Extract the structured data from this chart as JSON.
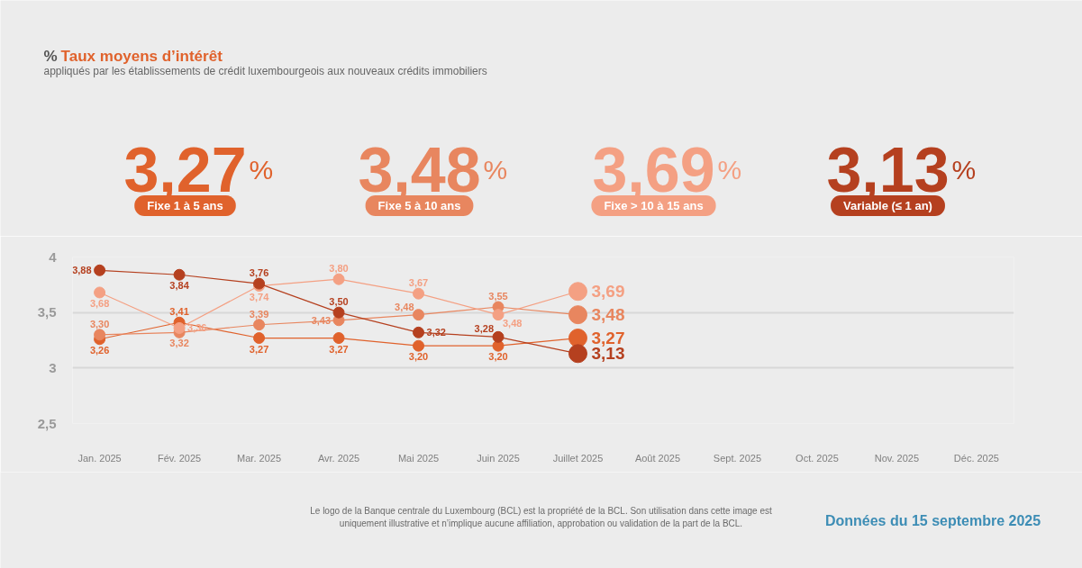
{
  "chart_data": {
    "type": "line",
    "title": "Taux moyens d’intérêt",
    "subtitle": "appliqués par les établissements de crédit luxembourgeois aux nouveaux crédits immobiliers",
    "ylabel": "%",
    "categories": [
      "Jan. 2025",
      "Fév. 2025",
      "Mar. 2025",
      "Avr. 2025",
      "Mai 2025",
      "Juin 2025",
      "Juillet 2025",
      "Août 2025",
      "Sept. 2025",
      "Oct. 2025",
      "Nov. 2025",
      "Déc. 2025"
    ],
    "series": [
      {
        "name": "Fixe 1 à 5 ans",
        "color": "#e0622c",
        "values": [
          3.26,
          3.41,
          3.27,
          3.27,
          3.2,
          3.2,
          3.27,
          null,
          null,
          null,
          null,
          null
        ],
        "value_labels": [
          "3,26",
          "3,41",
          "3,27",
          "3,27",
          "3,20",
          "3,20",
          "3,27",
          null,
          null,
          null,
          null,
          null
        ]
      },
      {
        "name": "Fixe 5 à 10 ans",
        "color": "#e8865f",
        "values": [
          3.3,
          3.32,
          3.39,
          3.43,
          3.48,
          3.55,
          3.48,
          null,
          null,
          null,
          null,
          null
        ],
        "value_labels": [
          "3,30",
          "3,32",
          "3,39",
          "3,43",
          "3,48",
          "3,55",
          "3,48",
          null,
          null,
          null,
          null,
          null
        ]
      },
      {
        "name": "Fixe > 10 à 15 ans",
        "color": "#f4a083",
        "values": [
          3.68,
          3.36,
          3.74,
          3.8,
          3.67,
          3.48,
          3.69,
          null,
          null,
          null,
          null,
          null
        ],
        "value_labels": [
          "3,68",
          "3,36",
          "3,74",
          "3,80",
          "3,67",
          "3,48",
          "3,69",
          null,
          null,
          null,
          null,
          null
        ]
      },
      {
        "name": "Variable (≤ 1 an)",
        "color": "#b5401f",
        "values": [
          3.88,
          3.84,
          3.76,
          3.5,
          3.32,
          3.28,
          3.13,
          null,
          null,
          null,
          null,
          null
        ],
        "value_labels": [
          "3,88",
          "3,84",
          "3,76",
          "3,50",
          "3,32",
          "3,28",
          "3,13",
          null,
          null,
          null,
          null,
          null
        ]
      }
    ],
    "ylim": [
      2.5,
      4
    ],
    "yticks": [
      {
        "value": 2.5,
        "label": "2,5"
      },
      3,
      {
        "value": 3.5,
        "label": "3,5"
      },
      4
    ],
    "grid": "y",
    "legend": "top",
    "marker": "circle",
    "line_style": "solid",
    "annotations": [
      "Le logo de la Banque centrale du Luxembourg (BCL) est la propriété de la BCL. Son utilisation dans cette image est uniquement illustrative et n’implique aucune affiliation, approbation ou validation de la part de la BCL.",
      "Données du 15 septembre 2025"
    ]
  }
}
